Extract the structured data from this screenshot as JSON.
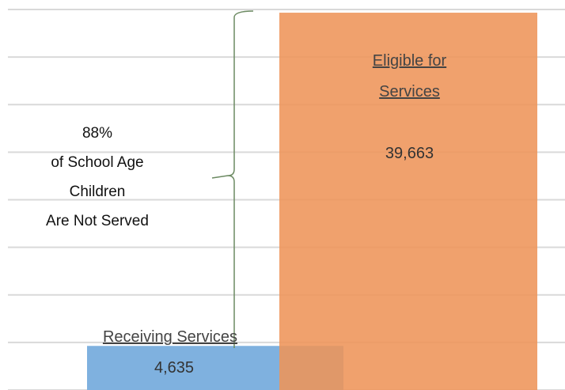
{
  "chart_data": {
    "type": "bar",
    "categories": [
      "Receiving Services",
      "Eligible for Services"
    ],
    "values": [
      4635,
      39663
    ],
    "value_labels": [
      "4,635",
      "39,663"
    ],
    "colors": [
      "#7fb1df",
      "#ee9459"
    ],
    "ylim": [
      0,
      40000
    ],
    "yticks": [
      0,
      5000,
      10000,
      15000,
      20000,
      25000,
      30000,
      35000,
      40000
    ],
    "grid": true,
    "annotation": [
      "88%",
      "of School Age",
      "Children",
      "Are Not Served"
    ]
  }
}
